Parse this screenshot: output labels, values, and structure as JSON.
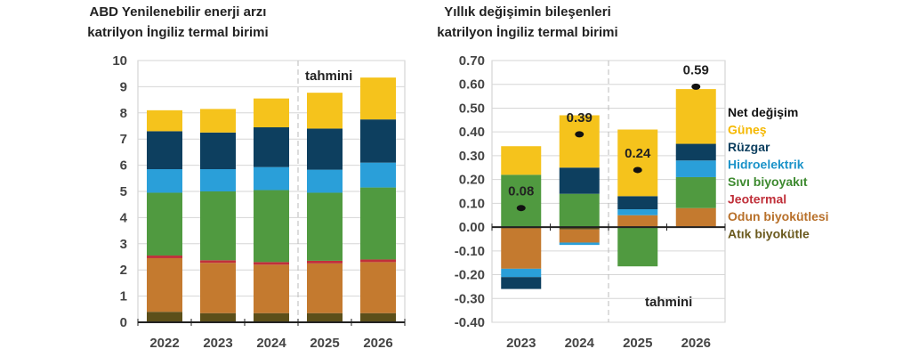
{
  "colors": {
    "Güneş": "#f5c31c",
    "Rüzgar": "#0d3f5f",
    "Hidroelektrik": "#2a9fd9",
    "Sıvı biyoyakıt": "#509a40",
    "Jeotermal": "#c0303a",
    "Odun biyokütlesi": "#c47a2f",
    "Atık biyokütle": "#5c4f1a",
    "Net değişim": "#111111"
  },
  "legend": {
    "items": [
      "Net değişim",
      "Güneş",
      "Rüzgar",
      "Hidroelektrik",
      "Sıvı biyoyakıt",
      "Jeotermal",
      "Odun biyokütlesi",
      "Atık biyokütle"
    ],
    "text_colors": [
      "#111111",
      "#f5b800",
      "#0d3f5f",
      "#1b93c9",
      "#3e8a30",
      "#c0303a",
      "#b8702a",
      "#6b5a1e"
    ]
  },
  "chart_data": [
    {
      "type": "bar",
      "stacked": true,
      "title": "ABD Yenilenebilir enerji arzı",
      "subtitle": "katrilyon İngiliz termal birimi",
      "ylim": [
        0,
        10
      ],
      "yticks": [
        "0",
        "1",
        "2",
        "3",
        "4",
        "5",
        "6",
        "7",
        "8",
        "9",
        "10"
      ],
      "grid": true,
      "annotation": "tahmini",
      "forecast_from": "2025",
      "categories": [
        "2022",
        "2023",
        "2024",
        "2025",
        "2026"
      ],
      "series": [
        {
          "name": "Atık biyokütle",
          "values": [
            0.4,
            0.35,
            0.35,
            0.35,
            0.35
          ]
        },
        {
          "name": "Odun biyokütlesi",
          "values": [
            2.05,
            1.92,
            1.85,
            1.9,
            1.95
          ]
        },
        {
          "name": "Jeotermal",
          "values": [
            0.1,
            0.1,
            0.1,
            0.1,
            0.1
          ]
        },
        {
          "name": "Sıvı biyoyakıt",
          "values": [
            2.4,
            2.63,
            2.75,
            2.6,
            2.75
          ]
        },
        {
          "name": "Hidroelektrik",
          "values": [
            0.9,
            0.85,
            0.88,
            0.88,
            0.95
          ]
        },
        {
          "name": "Rüzgar",
          "values": [
            1.45,
            1.4,
            1.52,
            1.57,
            1.65
          ]
        },
        {
          "name": "Güneş",
          "values": [
            0.8,
            0.9,
            1.1,
            1.37,
            1.6
          ]
        }
      ]
    },
    {
      "type": "bar",
      "stacked": true,
      "title": "Yıllık değişimin bileşenleri",
      "subtitle": "katrilyon İngiliz termal birimi",
      "ylim": [
        -0.4,
        0.7
      ],
      "yticks": [
        "-0.40",
        "-0.30",
        "-0.20",
        "-0.10",
        "0.00",
        "0.10",
        "0.20",
        "0.30",
        "0.40",
        "0.50",
        "0.60",
        "0.70"
      ],
      "grid": true,
      "annotation": "tahmini",
      "forecast_from": "2025",
      "categories": [
        "2023",
        "2024",
        "2025",
        "2026"
      ],
      "series": [
        {
          "name": "Atık biyokütle",
          "values": [
            -0.005,
            -0.01,
            0,
            0
          ]
        },
        {
          "name": "Odun biyokütlesi",
          "values": [
            -0.17,
            -0.055,
            0.05,
            0.08
          ]
        },
        {
          "name": "Jeotermal",
          "values": [
            0,
            0,
            0,
            0
          ]
        },
        {
          "name": "Sıvı biyoyakıt",
          "values": [
            0.22,
            0.14,
            -0.165,
            0.13
          ]
        },
        {
          "name": "Hidroelektrik",
          "values": [
            -0.035,
            -0.01,
            0.025,
            0.07
          ]
        },
        {
          "name": "Rüzgar",
          "values": [
            -0.05,
            0.11,
            0.055,
            0.07
          ]
        },
        {
          "name": "Güneş",
          "values": [
            0.12,
            0.22,
            0.28,
            0.23
          ]
        }
      ],
      "net": {
        "name": "Net değişim",
        "values": [
          0.08,
          0.39,
          0.24,
          0.59
        ],
        "labels": [
          "0.08",
          "0.39",
          "0.24",
          "0.59"
        ]
      }
    }
  ]
}
